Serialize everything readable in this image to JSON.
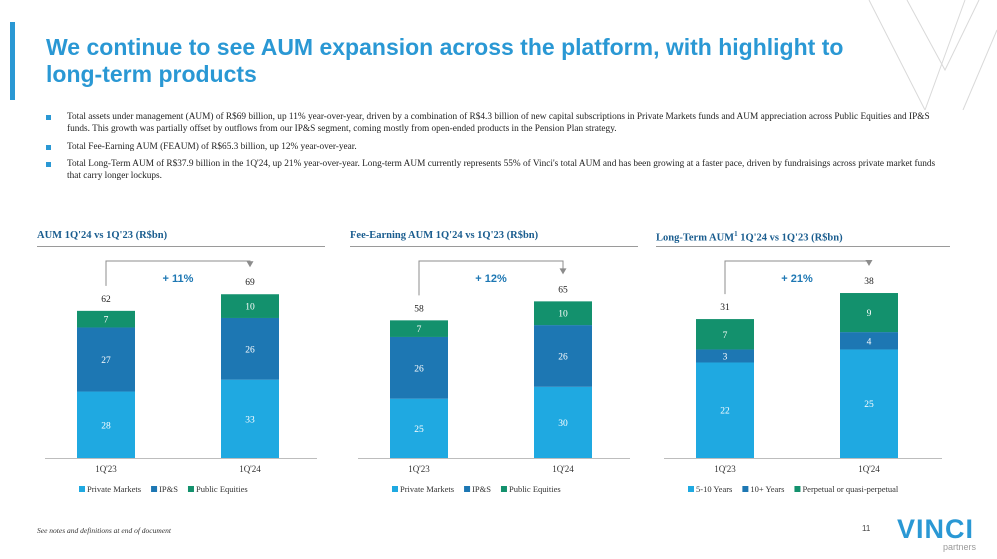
{
  "page": {
    "title": "We continue to see AUM expansion across the platform, with highlight to long-term products",
    "bullets": [
      "Total assets under management (AUM) of R$69 billion, up 11% year-over-year, driven by a combination of R$4.3 billion of new capital subscriptions in Private Markets funds and AUM appreciation across Public Equities and IP&S funds. This growth was partially offset by outflows from our IP&S segment, coming mostly from open-ended products in the Pension Plan strategy.",
      "Total Fee-Earning AUM (FEAUM) of R$65.3 billion, up 12% year-over-year.",
      "Total Long-Term AUM of R$37.9 billion in the 1Q'24, up 21% year-over-year. Long-term AUM currently represents 55% of Vinci's total AUM and has been growing at a faster pace, driven by fundraisings across private market funds that carry longer lockups."
    ],
    "footnote": "See notes and definitions at end of document",
    "page_number": "11",
    "logo": {
      "word": "VINCI",
      "sub": "partners"
    },
    "colors": {
      "accent": "#2a98d4",
      "heading": "#1a5d8f",
      "series1": "#1fa9e1",
      "series2": "#1d77b3",
      "series3": "#13916d"
    }
  },
  "chart_data": [
    {
      "type": "bar",
      "stacked": true,
      "title": "AUM 1Q'24 vs 1Q'23 (R$bn)",
      "title_sup": "",
      "categories": [
        "1Q'23",
        "1Q'24"
      ],
      "series": [
        {
          "name": "Private Markets",
          "values": [
            28,
            33
          ],
          "color": "#1fa9e1"
        },
        {
          "name": "IP&S",
          "values": [
            27,
            26
          ],
          "color": "#1d77b3"
        },
        {
          "name": "Public Equities",
          "values": [
            7,
            10
          ],
          "color": "#13916d"
        }
      ],
      "totals": [
        "62",
        "69"
      ],
      "growth": "+ 11%",
      "ylim": [
        0,
        75
      ]
    },
    {
      "type": "bar",
      "stacked": true,
      "title": "Fee-Earning AUM 1Q'24 vs 1Q'23 (R$bn)",
      "title_sup": "",
      "categories": [
        "1Q'23",
        "1Q'24"
      ],
      "series": [
        {
          "name": "Private Markets",
          "values": [
            25,
            30
          ],
          "color": "#1fa9e1"
        },
        {
          "name": "IP&S",
          "values": [
            26,
            26
          ],
          "color": "#1d77b3"
        },
        {
          "name": "Public Equities",
          "values": [
            7,
            10
          ],
          "color": "#13916d"
        }
      ],
      "totals": [
        "58",
        "65"
      ],
      "growth": "+ 12%",
      "ylim": [
        0,
        75
      ]
    },
    {
      "type": "bar",
      "stacked": true,
      "title": "Long-Term AUM",
      "title_sup": "1",
      "title_rest": " 1Q'24 vs 1Q'23 (R$bn)",
      "categories": [
        "1Q'23",
        "1Q'24"
      ],
      "series": [
        {
          "name": "5-10 Years",
          "values": [
            22,
            25
          ],
          "color": "#1fa9e1"
        },
        {
          "name": "10+ Years",
          "values": [
            3,
            4
          ],
          "color": "#1d77b3"
        },
        {
          "name": "Perpetual or quasi-perpetual",
          "values": [
            7,
            9
          ],
          "color": "#13916d"
        }
      ],
      "totals": [
        "31",
        "38"
      ],
      "growth": "+ 21%",
      "ylim": [
        0,
        41
      ]
    }
  ]
}
